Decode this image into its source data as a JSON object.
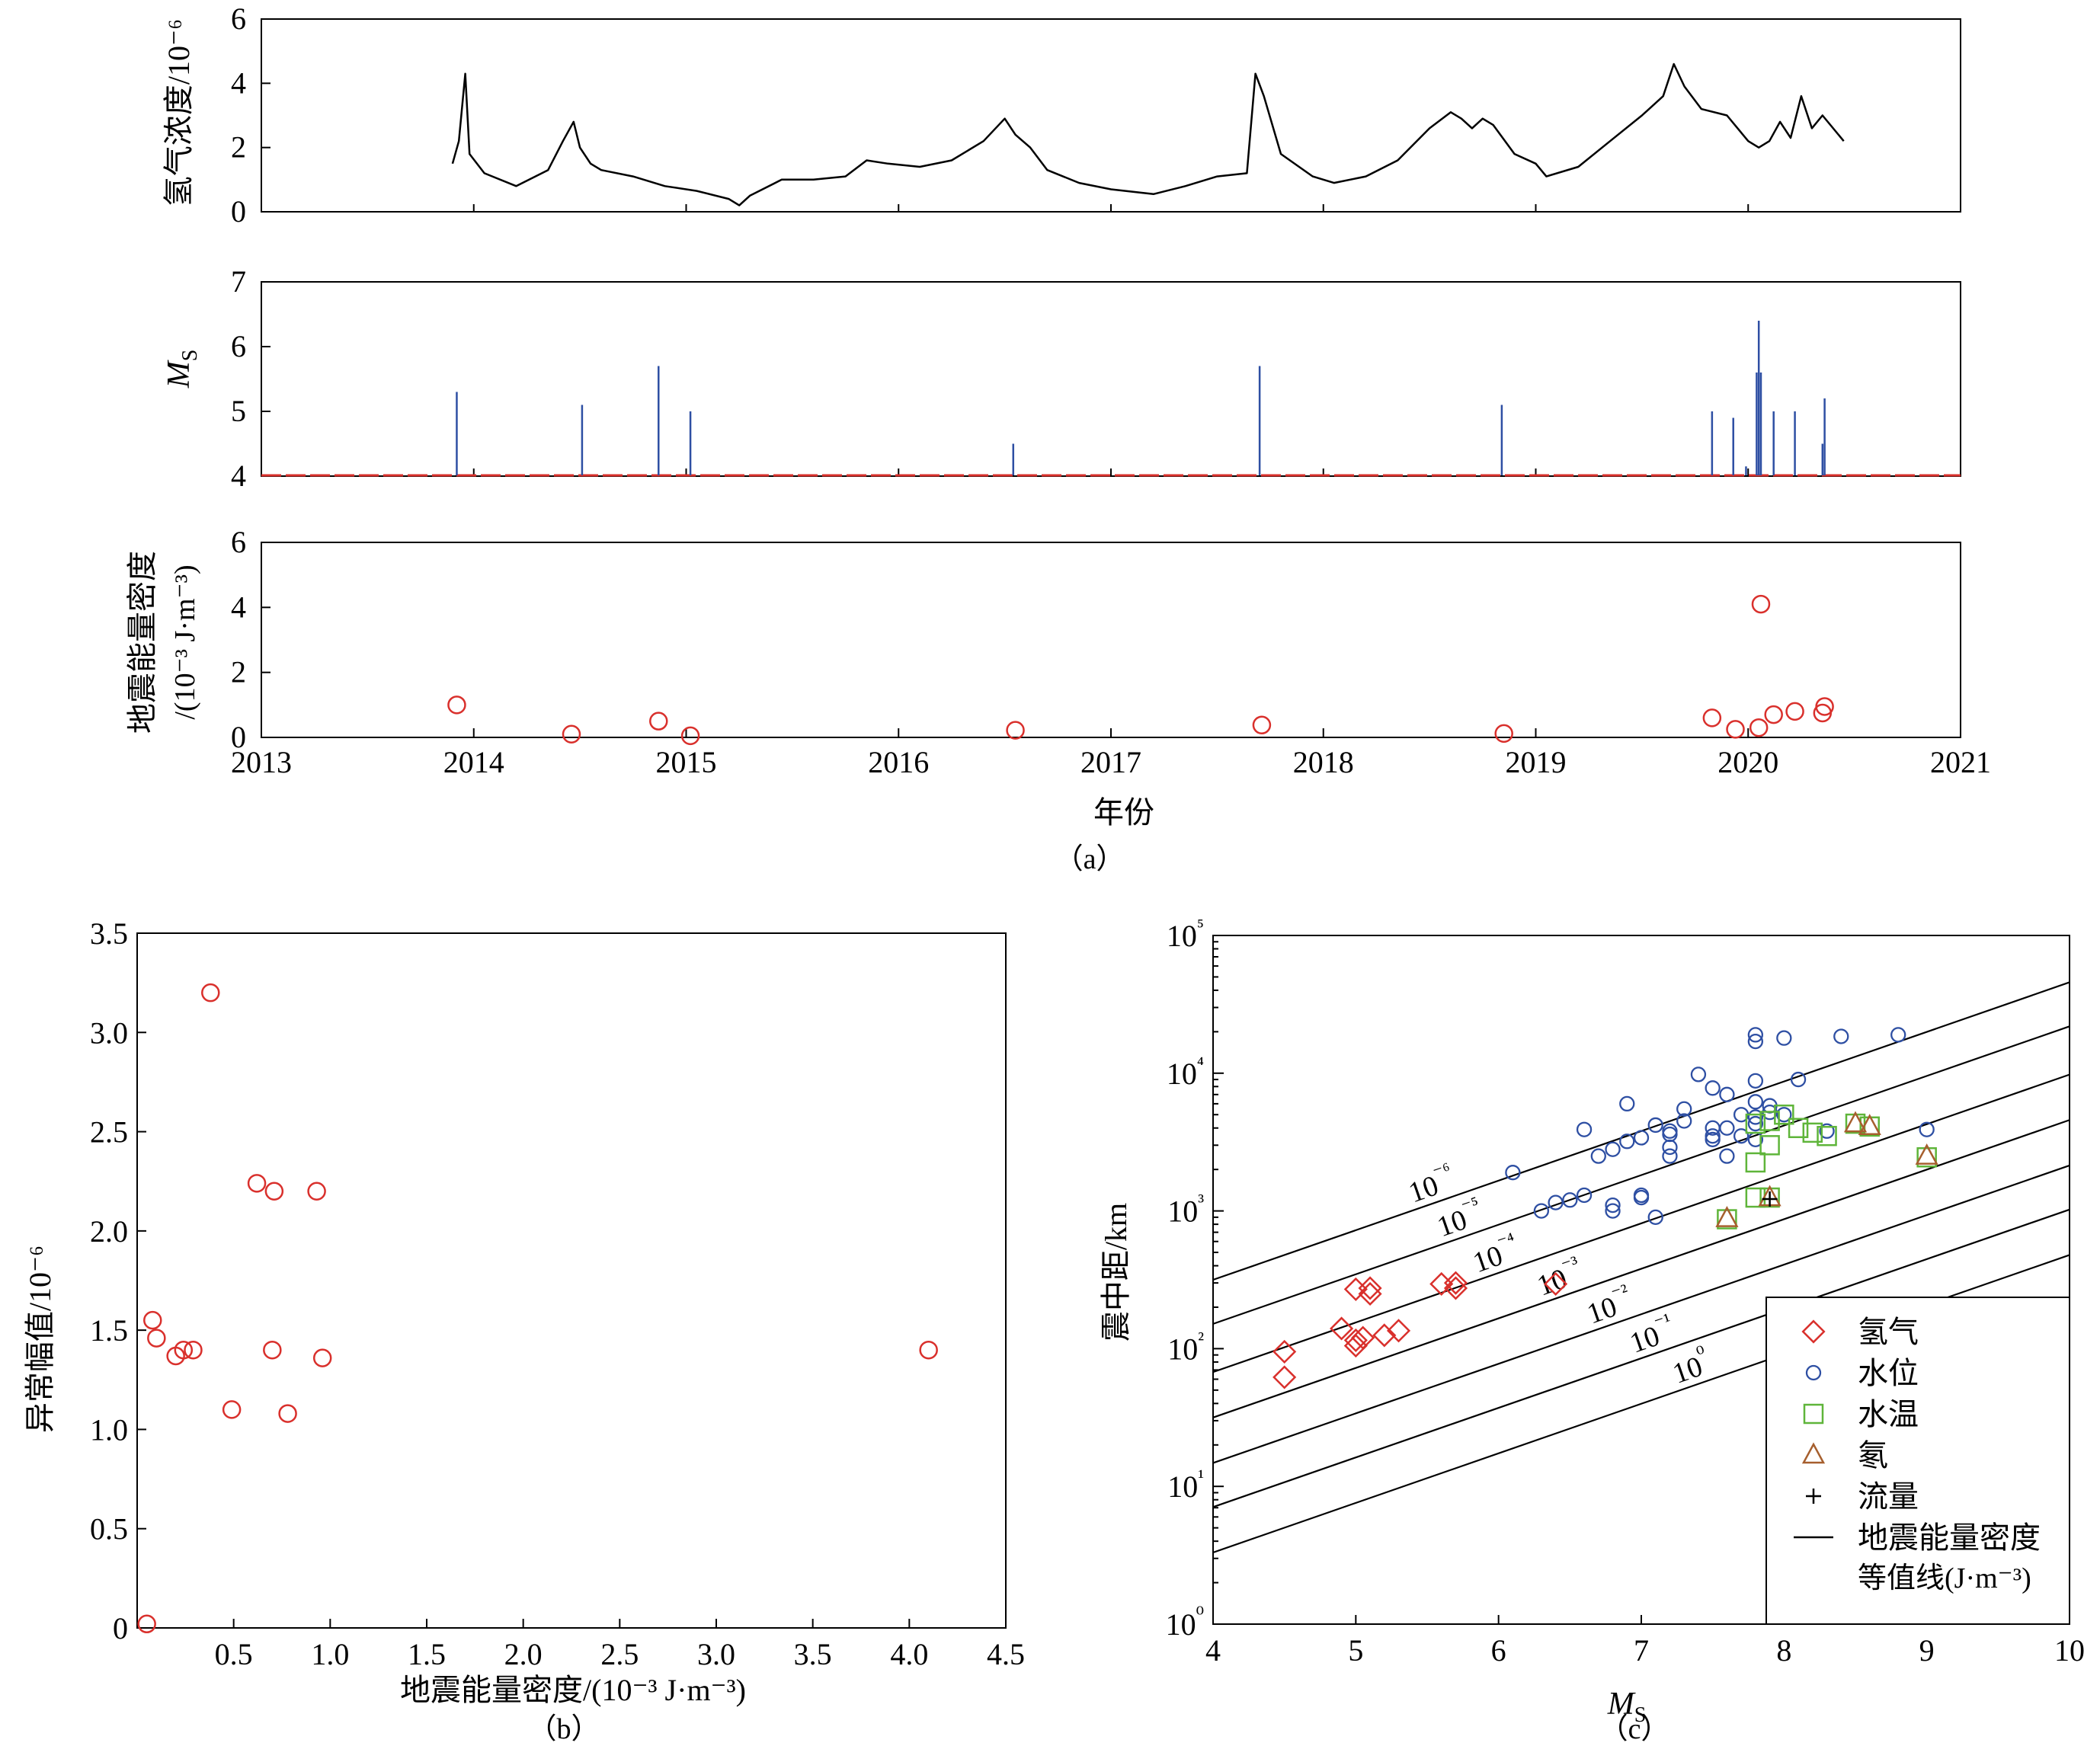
{
  "chart_data": [
    {
      "id": "a1",
      "type": "line",
      "ylabel": "氢气浓度/10⁻⁶",
      "xlim": [
        2013,
        2021
      ],
      "ylim": [
        0,
        6
      ],
      "yticks": [
        "0",
        "2",
        "4",
        "6"
      ],
      "grid": false,
      "series": [
        {
          "color": "#000000",
          "x": [
            2013.9,
            2013.93,
            2013.96,
            2013.98,
            2014.05,
            2014.2,
            2014.35,
            2014.42,
            2014.47,
            2014.5,
            2014.55,
            2014.6,
            2014.75,
            2014.9,
            2015.05,
            2015.2,
            2015.25,
            2015.3,
            2015.45,
            2015.6,
            2015.75,
            2015.85,
            2015.95,
            2016.1,
            2016.25,
            2016.4,
            2016.5,
            2016.55,
            2016.62,
            2016.7,
            2016.85,
            2017.0,
            2017.2,
            2017.35,
            2017.5,
            2017.64,
            2017.68,
            2017.72,
            2017.8,
            2017.95,
            2018.05,
            2018.2,
            2018.35,
            2018.5,
            2018.6,
            2018.65,
            2018.7,
            2018.75,
            2018.8,
            2018.9,
            2019.0,
            2019.05,
            2019.2,
            2019.35,
            2019.5,
            2019.6,
            2019.65,
            2019.7,
            2019.78,
            2019.9,
            2020.0,
            2020.05,
            2020.1,
            2020.15,
            2020.2,
            2020.25,
            2020.3,
            2020.35,
            2020.45
          ],
          "y": [
            1.5,
            2.2,
            4.3,
            1.8,
            1.2,
            0.8,
            1.3,
            2.2,
            2.8,
            2.0,
            1.5,
            1.3,
            1.1,
            0.8,
            0.65,
            0.4,
            0.2,
            0.5,
            1.0,
            1.0,
            1.1,
            1.6,
            1.5,
            1.4,
            1.6,
            2.2,
            2.9,
            2.4,
            2.0,
            1.3,
            0.9,
            0.7,
            0.55,
            0.8,
            1.1,
            1.2,
            4.3,
            3.6,
            1.8,
            1.1,
            0.9,
            1.1,
            1.6,
            2.6,
            3.1,
            2.9,
            2.6,
            2.9,
            2.7,
            1.8,
            1.5,
            1.1,
            1.4,
            2.2,
            3.0,
            3.6,
            4.6,
            3.9,
            3.2,
            3.0,
            2.2,
            2.0,
            2.2,
            2.8,
            2.3,
            3.6,
            2.6,
            3.0,
            2.2
          ]
        }
      ]
    },
    {
      "id": "a2",
      "type": "bar",
      "ylabel": "M",
      "ylabel_sub": "S",
      "xlim": [
        2013,
        2021
      ],
      "ylim": [
        4,
        7
      ],
      "yticks": [
        "4",
        "5",
        "6",
        "7"
      ],
      "bar_color": "#2e4fa3",
      "baseline_color": "#d9302c",
      "x": [
        2013.92,
        2014.51,
        2014.87,
        2015.02,
        2016.54,
        2017.7,
        2018.84,
        2019.83,
        2019.93,
        2019.99,
        2020.04,
        2020.05,
        2020.06,
        2020.12,
        2020.22,
        2020.35,
        2020.36
      ],
      "values": [
        5.3,
        5.1,
        5.7,
        5.0,
        4.5,
        5.7,
        5.1,
        5.0,
        4.9,
        4.15,
        5.6,
        6.4,
        5.6,
        5.0,
        5.0,
        4.5,
        5.2
      ]
    },
    {
      "id": "a3",
      "type": "scatter",
      "ylabel": "地震能量密度",
      "ylabel2": "/(10⁻³ J·m⁻³)",
      "xlabel": "年份",
      "panel_label": "（a）",
      "xlim": [
        2013,
        2021
      ],
      "ylim": [
        0,
        6
      ],
      "xticks": [
        "2013",
        "2014",
        "2015",
        "2016",
        "2017",
        "2018",
        "2019",
        "2020",
        "2021"
      ],
      "yticks": [
        "0",
        "2",
        "4",
        "6"
      ],
      "marker_color": "#d9302c",
      "x": [
        2013.92,
        2014.46,
        2014.87,
        2015.02,
        2016.55,
        2017.71,
        2018.85,
        2019.83,
        2019.94,
        2020.05,
        2020.06,
        2020.12,
        2020.22,
        2020.35,
        2020.36
      ],
      "y": [
        1.0,
        0.1,
        0.5,
        0.05,
        0.22,
        0.38,
        0.12,
        0.6,
        0.25,
        0.3,
        4.1,
        0.7,
        0.8,
        0.75,
        0.95
      ]
    },
    {
      "id": "b",
      "type": "scatter",
      "ylabel": "异常幅值/10⁻⁶",
      "xlabel": "地震能量密度/(10⁻³ J·m⁻³)",
      "panel_label": "（b）",
      "xlim": [
        0,
        4.5
      ],
      "ylim": [
        0,
        3.5
      ],
      "xticks": [
        "0.5",
        "1.0",
        "1.5",
        "2.0",
        "2.5",
        "3.0",
        "3.5",
        "4.0",
        "4.5"
      ],
      "yticks": [
        "0",
        "0.5",
        "1.0",
        "1.5",
        "2.0",
        "2.5",
        "3.0",
        "3.5"
      ],
      "marker_color": "#d9302c",
      "x": [
        0.05,
        0.08,
        0.1,
        0.2,
        0.24,
        0.29,
        0.38,
        0.49,
        0.62,
        0.71,
        0.7,
        0.78,
        0.93,
        0.96,
        4.1
      ],
      "y": [
        0.02,
        1.55,
        1.46,
        1.37,
        1.4,
        1.4,
        3.2,
        1.1,
        2.24,
        2.2,
        1.4,
        1.08,
        2.2,
        1.36,
        1.4
      ]
    },
    {
      "id": "c",
      "type": "scatter",
      "ylabel": "震中距/km",
      "xlabel": "M",
      "xlabel_sub": "S",
      "panel_label": "（c）",
      "xlim": [
        4,
        10
      ],
      "ylim_log10": [
        0,
        5
      ],
      "xticks": [
        "4",
        "5",
        "6",
        "7",
        "8",
        "9",
        "10"
      ],
      "yticks": [
        "10⁰",
        "10¹",
        "10²",
        "10³",
        "10⁴",
        "10⁵"
      ],
      "contour_labels": [
        "10⁻⁶",
        "10⁻⁵",
        "10⁻⁴",
        "10⁻³",
        "10⁻²",
        "10⁻¹",
        "10⁰"
      ],
      "contour_log10_at_ms4": [
        2.5,
        2.18,
        1.83,
        1.5,
        1.17,
        0.85,
        0.52
      ],
      "contour_slope": 0.36,
      "legend_position": "bottom-right",
      "series": [
        {
          "name": "氢气",
          "marker": "diamond",
          "color": "#d9302c",
          "x": [
            4.5,
            4.5,
            4.9,
            5.0,
            5.0,
            5.0,
            5.05,
            5.1,
            5.1,
            5.2,
            5.3,
            5.6,
            5.7,
            5.7,
            6.4
          ],
          "y": [
            95,
            62,
            140,
            115,
            105,
            270,
            120,
            275,
            250,
            125,
            135,
            295,
            300,
            275,
            295
          ]
        },
        {
          "name": "水位",
          "marker": "circle",
          "color": "#2e4fa3",
          "x": [
            6.1,
            6.3,
            6.4,
            6.5,
            6.6,
            6.6,
            6.7,
            6.8,
            6.8,
            6.9,
            6.9,
            7.0,
            7.0,
            7.1,
            7.2,
            7.2,
            7.2,
            7.3,
            7.3,
            7.4,
            7.5,
            7.5,
            7.5,
            7.6,
            7.6,
            7.6,
            7.7,
            7.7,
            7.8,
            7.8,
            7.8,
            7.8,
            7.8,
            7.9,
            7.9,
            8.0,
            8.0,
            8.1,
            8.3,
            8.4,
            8.8,
            9.0,
            6.8,
            7.0,
            7.1,
            7.2,
            7.5,
            7.8,
            7.8
          ],
          "y": [
            1900,
            1000,
            1150,
            1200,
            1300,
            3900,
            2500,
            1100,
            2800,
            6000,
            3200,
            1250,
            3400,
            900,
            3800,
            2900,
            2500,
            4500,
            5500,
            9800,
            4000,
            3300,
            7800,
            7000,
            4000,
            2500,
            5000,
            3500,
            19000,
            17000,
            8800,
            6200,
            4800,
            5800,
            5200,
            18000,
            5000,
            9000,
            3800,
            18500,
            19000,
            3900,
            1000,
            1300,
            4200,
            3600,
            3500,
            4300,
            3300
          ]
        },
        {
          "name": "水温",
          "marker": "square",
          "color": "#5fb53a",
          "x": [
            7.6,
            7.8,
            7.8,
            7.8,
            7.9,
            7.9,
            7.9,
            8.0,
            8.1,
            8.2,
            8.3,
            8.5,
            8.6,
            9.0
          ],
          "y": [
            870,
            2250,
            4300,
            1250,
            3000,
            4500,
            1250,
            5000,
            4000,
            3700,
            3500,
            4300,
            4100,
            2450
          ]
        },
        {
          "name": "氡",
          "marker": "triangle",
          "color": "#a65f2e",
          "x": [
            7.6,
            7.9,
            8.5,
            8.6,
            9.0
          ],
          "y": [
            880,
            1250,
            4300,
            4100,
            2500
          ]
        },
        {
          "name": "流量",
          "marker": "plus",
          "color": "#000000",
          "x": [
            7.9
          ],
          "y": [
            1220
          ]
        },
        {
          "name": "地震能量密度",
          "name2": "等值线(J·m⁻³)",
          "marker": "line",
          "color": "#000000",
          "x": [],
          "y": []
        }
      ]
    }
  ]
}
